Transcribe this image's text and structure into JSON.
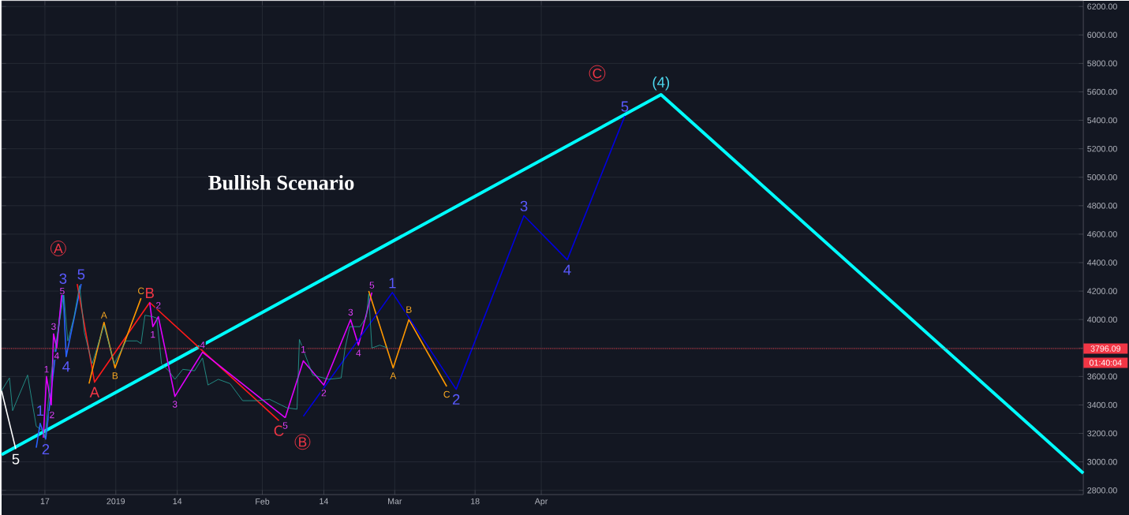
{
  "chart_data": {
    "type": "line",
    "title": "Bullish Scenario",
    "xlim": [
      "2018-12-07T20:00",
      "2019-07-24T16:00"
    ],
    "ylim": [
      2770,
      6240
    ],
    "xticks": [
      {
        "value": "2018-12-17",
        "label": "17"
      },
      {
        "value": "2019-01-01",
        "label": "2019"
      },
      {
        "value": "2019-01-14",
        "label": "14"
      },
      {
        "value": "2019-02-01",
        "label": "Feb"
      },
      {
        "value": "2019-02-14",
        "label": "14"
      },
      {
        "value": "2019-03-01",
        "label": "Mar"
      },
      {
        "value": "2019-03-18",
        "label": "18"
      },
      {
        "value": "2019-04-01",
        "label": "Apr"
      }
    ],
    "yticks": [
      {
        "value": 2800,
        "label": "2800.00"
      },
      {
        "value": 3000,
        "label": "3000.00"
      },
      {
        "value": 3200,
        "label": "3200.00"
      },
      {
        "value": 3400,
        "label": "3400.00"
      },
      {
        "value": 3600,
        "label": "3600.00"
      },
      {
        "value": 3800,
        "label": null
      },
      {
        "value": 4000,
        "label": "4000.00"
      },
      {
        "value": 4200,
        "label": "4200.00"
      },
      {
        "value": 4400,
        "label": "4400.00"
      },
      {
        "value": 4600,
        "label": "4600.00"
      },
      {
        "value": 4800,
        "label": "4800.00"
      },
      {
        "value": 5000,
        "label": "5000.00"
      },
      {
        "value": 5200,
        "label": "5200.00"
      },
      {
        "value": 5400,
        "label": "5400.00"
      },
      {
        "value": 5600,
        "label": "5600.00"
      },
      {
        "value": 5800,
        "label": "5800.00"
      },
      {
        "value": 6000,
        "label": "6000.00"
      },
      {
        "value": 6200,
        "label": "6200.00"
      }
    ],
    "grid": true,
    "series": [
      {
        "color": "#26a69a",
        "x": [
          "2018-12-07T20:00",
          "2018-12-09T12:00",
          "2018-12-10T04:00",
          "2018-12-11T04:00",
          "2018-12-13T08:00",
          "2018-12-15T04:00",
          "2018-12-16T12:00",
          "2018-12-17T00:00",
          "2018-12-18T04:00",
          "2018-12-19T04:00",
          "2018-12-20T12:00",
          "2018-12-21T00:00",
          "2018-12-21T20:00",
          "2018-12-23T04:00",
          "2018-12-24T08:00",
          "2018-12-25T08:00",
          "2018-12-27T00:00",
          "2018-12-29T12:00",
          "2018-12-31T16:00",
          "2019-01-03T04:00",
          "2019-01-05T12:00",
          "2019-01-06T08:00",
          "2019-01-07T04:00",
          "2019-01-08T20:00",
          "2019-01-09T16:00",
          "2019-01-10T16:00",
          "2019-01-12T04:00",
          "2019-01-13T12:00",
          "2019-01-15T04:00",
          "2019-01-17T16:00",
          "2019-01-19T08:00",
          "2019-01-20T12:00",
          "2019-01-22T16:00",
          "2019-01-25T04:00",
          "2019-01-27T20:00",
          "2019-01-31T00:00",
          "2019-02-02T12:00",
          "2019-02-06T04:00",
          "2019-02-08T08:00",
          "2019-02-08T20:00",
          "2019-02-11T16:00",
          "2019-02-15T00:00",
          "2019-02-17T16:00",
          "2019-02-18T12:00",
          "2019-02-19T12:00",
          "2019-02-21T16:00",
          "2019-02-23T00:00",
          "2019-02-23T12:00",
          "2019-02-24T04:00",
          "2019-02-25T20:00",
          "2019-02-27T12:00"
        ],
        "values": [
          3500,
          3590,
          3360,
          3440,
          3610,
          3250,
          3220,
          3170,
          3580,
          3800,
          4070,
          4180,
          3850,
          4020,
          4240,
          3910,
          3690,
          3960,
          3690,
          3850,
          3850,
          3830,
          4030,
          4020,
          4010,
          3690,
          3640,
          3580,
          3650,
          3640,
          3730,
          3540,
          3580,
          3550,
          3430,
          3430,
          3440,
          3380,
          3370,
          3860,
          3610,
          3580,
          3590,
          3800,
          3950,
          3950,
          4020,
          4180,
          3800,
          3820,
          3800
        ]
      },
      {
        "color": "#00ffff",
        "x": [
          "2018-12-07T20:00",
          "2019-04-26T08:00",
          "2019-07-24T16:00"
        ],
        "values": [
          3050,
          5580,
          2920
        ]
      },
      {
        "color": "#ffffff",
        "x": [
          "2018-12-07T20:00",
          "2018-12-10T20:00"
        ],
        "values": [
          3500,
          3090
        ]
      },
      {
        "color": "#2962ff",
        "x": [
          "2018-12-15T04:00",
          "2018-12-16T00:00",
          "2018-12-17T04:00",
          "2018-12-20T20:00",
          "2018-12-21T12:00",
          "2018-12-24T16:00"
        ],
        "values": [
          3100,
          3270,
          3160,
          4220,
          3740,
          4250
        ]
      },
      {
        "color": "#ff1a1a",
        "x": [
          "2018-12-23T20:00",
          "2018-12-27T12:00",
          "2019-01-08T04:00",
          "2019-02-04T12:00"
        ],
        "values": [
          4250,
          3560,
          4120,
          3290
        ]
      },
      {
        "color": "#ff9800",
        "x": [
          "2018-12-26T08:00",
          "2018-12-29T12:00",
          "2018-12-31T20:00",
          "2019-01-06T08:00"
        ],
        "values": [
          3550,
          3980,
          3660,
          4150
        ]
      },
      {
        "color": "#e100ff",
        "x": [
          "2018-12-16T16:00",
          "2018-12-17T08:00",
          "2018-12-18T08:00",
          "2018-12-18T20:00",
          "2018-12-19T12:00",
          "2018-12-20T16:00"
        ],
        "values": [
          3170,
          3600,
          3400,
          3900,
          3800,
          4220
        ]
      },
      {
        "color": "#e100ff",
        "x": [
          "2019-01-08T04:00",
          "2019-01-08T20:00",
          "2019-01-10T00:00",
          "2019-01-13T12:00",
          "2019-01-19T08:00",
          "2019-02-05T20:00"
        ],
        "values": [
          4120,
          3950,
          4020,
          3460,
          3770,
          3310
        ]
      },
      {
        "color": "#e100ff",
        "x": [
          "2019-02-05T20:00",
          "2019-02-09T16:00",
          "2019-02-14T00:00",
          "2019-02-19T16:00",
          "2019-02-21T08:00",
          "2019-02-24T04:00"
        ],
        "values": [
          3310,
          3710,
          3540,
          4000,
          3820,
          4190
        ]
      },
      {
        "color": "#ff9800",
        "x": [
          "2019-02-23T12:00",
          "2019-02-28T16:00",
          "2019-03-04T00:00",
          "2019-03-12T00:00"
        ],
        "values": [
          4200,
          3660,
          4000,
          3530
        ]
      },
      {
        "color": "#0000e0",
        "x": [
          "2019-02-09T16:00",
          "2019-02-28T12:00",
          "2019-03-14T00:00",
          "2019-03-28T08:00",
          "2019-04-06T12:00",
          "2019-04-18T16:00"
        ],
        "values": [
          3320,
          4190,
          3510,
          4730,
          4420,
          5430
        ]
      }
    ],
    "ref_lines": [
      {
        "axis": "y",
        "value": 3796.09,
        "label": "3796.09",
        "color": "#f23645",
        "line_style": "dotted"
      }
    ],
    "annotations": [
      {
        "text": "5",
        "x": "2018-12-10T20:00",
        "y": 3090
      },
      {
        "text": "1",
        "x": "2018-12-16T00:00",
        "y": 3360
      },
      {
        "text": "2",
        "x": "2018-12-17T04:00",
        "y": 3160
      },
      {
        "text": "3",
        "x": "2018-12-20T20:00",
        "y": 4220
      },
      {
        "text": "4",
        "x": "2018-12-21T12:00",
        "y": 3740
      },
      {
        "text": "5",
        "x": "2018-12-24T16:00",
        "y": 4250
      },
      {
        "text": "A",
        "x": "2018-12-19T20:00",
        "y": 4500
      },
      {
        "text": "A",
        "x": "2018-12-27T12:00",
        "y": 3560
      },
      {
        "text": "B",
        "x": "2019-01-08T04:00",
        "y": 4120
      },
      {
        "text": "C",
        "x": "2019-02-04T12:00",
        "y": 3290
      },
      {
        "text": "B",
        "x": "2019-02-09T12:00",
        "y": 3140
      },
      {
        "text": "1",
        "x": "2019-02-28T12:00",
        "y": 4190
      },
      {
        "text": "2",
        "x": "2019-03-14T00:00",
        "y": 3510
      },
      {
        "text": "3",
        "x": "2019-03-28T08:00",
        "y": 4730
      },
      {
        "text": "4",
        "x": "2019-04-06T12:00",
        "y": 4420
      },
      {
        "text": "5",
        "x": "2019-04-18T16:00",
        "y": 5430
      },
      {
        "text": "C",
        "x": "2019-04-12T20:00",
        "y": 5730
      },
      {
        "text": "(4)",
        "x": "2019-04-26T08:00",
        "y": 5580
      },
      {
        "text": "A",
        "x": "2018-12-29T12:00",
        "y": 3980
      },
      {
        "text": "B",
        "x": "2018-12-31T20:00",
        "y": 3660
      },
      {
        "text": "C",
        "x": "2019-01-06T08:00",
        "y": 4150
      },
      {
        "text": "A",
        "x": "2019-02-28T16:00",
        "y": 3660
      },
      {
        "text": "B",
        "x": "2019-03-04T00:00",
        "y": 4070
      },
      {
        "text": "C",
        "x": "2019-03-12T00:00",
        "y": 3530
      },
      {
        "text": "1",
        "x": "2019-01-08T20:00",
        "y": 3950
      },
      {
        "text": "2",
        "x": "2019-01-10T00:00",
        "y": 4100
      },
      {
        "text": "3",
        "x": "2019-01-13T12:00",
        "y": 3460
      },
      {
        "text": "4",
        "x": "2019-01-19T08:00",
        "y": 3770
      },
      {
        "text": "5",
        "x": "2019-02-05T20:00",
        "y": 3310
      },
      {
        "text": "1",
        "x": "2019-02-09T16:00",
        "y": 3790
      },
      {
        "text": "2",
        "x": "2019-02-14T00:00",
        "y": 3540
      },
      {
        "text": "3",
        "x": "2019-02-19T16:00",
        "y": 4000
      },
      {
        "text": "4",
        "x": "2019-02-21T08:00",
        "y": 3820
      },
      {
        "text": "5",
        "x": "2019-02-24T04:00",
        "y": 4190
      },
      {
        "text": "1",
        "x": "2018-12-17T08:00",
        "y": 3600
      },
      {
        "text": "2",
        "x": "2018-12-18T12:00",
        "y": 3330
      },
      {
        "text": "3",
        "x": "2018-12-18T20:00",
        "y": 3900
      },
      {
        "text": "4",
        "x": "2018-12-19T12:00",
        "y": 3800
      },
      {
        "text": "5",
        "x": "2018-12-20T16:00",
        "y": 4200
      },
      "01:40:04"
    ]
  }
}
